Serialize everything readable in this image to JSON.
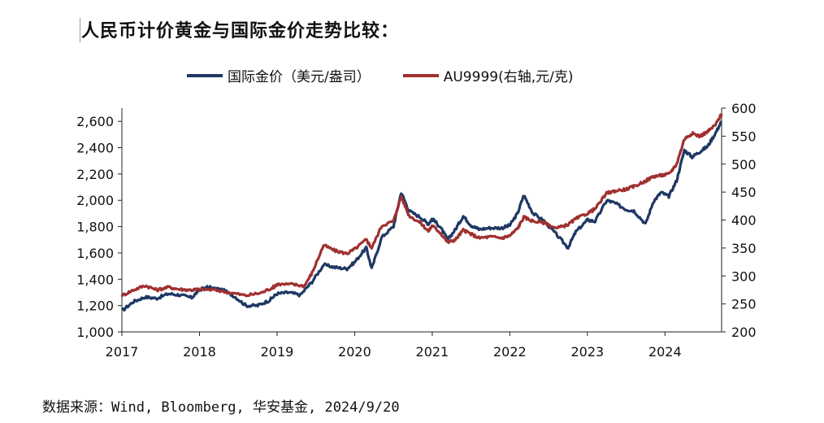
{
  "header": {
    "title": "人民币计价黄金与国际金价走势比较："
  },
  "footer": {
    "source": "数据来源：Wind, Bloomberg, 华安基金, 2024/9/20"
  },
  "chart_data": {
    "type": "line",
    "xlabel": "",
    "ylabel": "",
    "x_ticks": [
      "2017",
      "2018",
      "2019",
      "2020",
      "2021",
      "2022",
      "2023",
      "2024"
    ],
    "x_range": [
      2017.0,
      2024.73
    ],
    "y_left": {
      "range": [
        1000,
        2700
      ],
      "ticks": [
        "1,000",
        "1,200",
        "1,400",
        "1,600",
        "1,800",
        "2,000",
        "2,200",
        "2,400",
        "2,600"
      ]
    },
    "y_right": {
      "range": [
        200,
        600
      ],
      "ticks": [
        "200",
        "250",
        "300",
        "350",
        "400",
        "450",
        "500",
        "550",
        "600"
      ]
    },
    "legend_position": "top",
    "series": [
      {
        "name": "国际金价（美元/盎司）",
        "axis": "left",
        "color": "#1f3864",
        "points": [
          [
            2017.0,
            1160
          ],
          [
            2017.15,
            1230
          ],
          [
            2017.3,
            1265
          ],
          [
            2017.45,
            1255
          ],
          [
            2017.6,
            1290
          ],
          [
            2017.75,
            1280
          ],
          [
            2017.9,
            1260
          ],
          [
            2018.0,
            1320
          ],
          [
            2018.1,
            1340
          ],
          [
            2018.3,
            1320
          ],
          [
            2018.45,
            1270
          ],
          [
            2018.6,
            1200
          ],
          [
            2018.75,
            1200
          ],
          [
            2018.9,
            1240
          ],
          [
            2019.0,
            1290
          ],
          [
            2019.15,
            1300
          ],
          [
            2019.3,
            1280
          ],
          [
            2019.45,
            1380
          ],
          [
            2019.6,
            1510
          ],
          [
            2019.75,
            1490
          ],
          [
            2019.9,
            1480
          ],
          [
            2020.0,
            1530
          ],
          [
            2020.15,
            1640
          ],
          [
            2020.22,
            1480
          ],
          [
            2020.35,
            1720
          ],
          [
            2020.5,
            1800
          ],
          [
            2020.6,
            2060
          ],
          [
            2020.7,
            1920
          ],
          [
            2020.85,
            1870
          ],
          [
            2020.95,
            1820
          ],
          [
            2021.0,
            1860
          ],
          [
            2021.1,
            1800
          ],
          [
            2021.2,
            1700
          ],
          [
            2021.3,
            1780
          ],
          [
            2021.4,
            1880
          ],
          [
            2021.5,
            1810
          ],
          [
            2021.6,
            1780
          ],
          [
            2021.75,
            1790
          ],
          [
            2021.9,
            1790
          ],
          [
            2022.0,
            1810
          ],
          [
            2022.1,
            1900
          ],
          [
            2022.18,
            2040
          ],
          [
            2022.3,
            1900
          ],
          [
            2022.45,
            1840
          ],
          [
            2022.6,
            1740
          ],
          [
            2022.75,
            1640
          ],
          [
            2022.85,
            1760
          ],
          [
            2023.0,
            1850
          ],
          [
            2023.1,
            1840
          ],
          [
            2023.25,
            2000
          ],
          [
            2023.35,
            1980
          ],
          [
            2023.5,
            1930
          ],
          [
            2023.6,
            1920
          ],
          [
            2023.75,
            1820
          ],
          [
            2023.85,
            1990
          ],
          [
            2023.95,
            2060
          ],
          [
            2024.05,
            2030
          ],
          [
            2024.15,
            2150
          ],
          [
            2024.25,
            2380
          ],
          [
            2024.35,
            2330
          ],
          [
            2024.45,
            2370
          ],
          [
            2024.55,
            2410
          ],
          [
            2024.65,
            2510
          ],
          [
            2024.73,
            2600
          ]
        ]
      },
      {
        "name": "AU9999(右轴,元/克)",
        "axis": "right",
        "color": "#a03030",
        "points": [
          [
            2017.0,
            265
          ],
          [
            2017.15,
            275
          ],
          [
            2017.3,
            283
          ],
          [
            2017.45,
            275
          ],
          [
            2017.6,
            280
          ],
          [
            2017.75,
            276
          ],
          [
            2017.9,
            275
          ],
          [
            2018.0,
            276
          ],
          [
            2018.2,
            275
          ],
          [
            2018.4,
            270
          ],
          [
            2018.6,
            265
          ],
          [
            2018.8,
            270
          ],
          [
            2018.95,
            280
          ],
          [
            2019.0,
            285
          ],
          [
            2019.2,
            285
          ],
          [
            2019.35,
            282
          ],
          [
            2019.45,
            305
          ],
          [
            2019.6,
            355
          ],
          [
            2019.75,
            345
          ],
          [
            2019.9,
            340
          ],
          [
            2020.0,
            348
          ],
          [
            2020.15,
            365
          ],
          [
            2020.22,
            350
          ],
          [
            2020.35,
            390
          ],
          [
            2020.5,
            398
          ],
          [
            2020.6,
            442
          ],
          [
            2020.7,
            408
          ],
          [
            2020.85,
            395
          ],
          [
            2020.95,
            380
          ],
          [
            2021.0,
            390
          ],
          [
            2021.1,
            378
          ],
          [
            2021.2,
            360
          ],
          [
            2021.3,
            365
          ],
          [
            2021.4,
            382
          ],
          [
            2021.5,
            375
          ],
          [
            2021.6,
            368
          ],
          [
            2021.75,
            370
          ],
          [
            2021.9,
            368
          ],
          [
            2022.0,
            372
          ],
          [
            2022.1,
            385
          ],
          [
            2022.18,
            405
          ],
          [
            2022.3,
            398
          ],
          [
            2022.45,
            395
          ],
          [
            2022.6,
            385
          ],
          [
            2022.75,
            392
          ],
          [
            2022.85,
            402
          ],
          [
            2023.0,
            412
          ],
          [
            2023.1,
            420
          ],
          [
            2023.25,
            448
          ],
          [
            2023.35,
            452
          ],
          [
            2023.5,
            455
          ],
          [
            2023.6,
            460
          ],
          [
            2023.75,
            470
          ],
          [
            2023.85,
            478
          ],
          [
            2023.95,
            480
          ],
          [
            2024.05,
            482
          ],
          [
            2024.15,
            500
          ],
          [
            2024.25,
            545
          ],
          [
            2024.35,
            555
          ],
          [
            2024.45,
            550
          ],
          [
            2024.55,
            558
          ],
          [
            2024.65,
            570
          ],
          [
            2024.73,
            590
          ]
        ]
      }
    ]
  }
}
